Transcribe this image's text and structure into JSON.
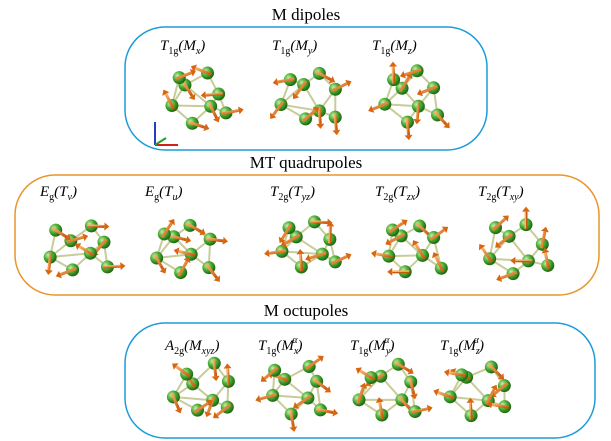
{
  "groups": [
    {
      "title": "M dipoles",
      "items": [
        {
          "head": "T",
          "head_sub": "1g",
          "arg_open": "(M",
          "arg_sub": "x",
          "arg_close": ")"
        },
        {
          "head": "T",
          "head_sub": "1g",
          "arg_open": "(M",
          "arg_sub": "y",
          "arg_close": ")"
        },
        {
          "head": "T",
          "head_sub": "1g",
          "arg_open": "(M",
          "arg_sub": "z",
          "arg_close": ")"
        }
      ]
    },
    {
      "title": "MT quadrupoles",
      "items": [
        {
          "head": "E",
          "head_sub": "g",
          "arg_open": "(T",
          "arg_sub": "v",
          "arg_close": ")"
        },
        {
          "head": "E",
          "head_sub": "g",
          "arg_open": "(T",
          "arg_sub": "u",
          "arg_close": ")"
        },
        {
          "head": "T",
          "head_sub": "2g",
          "arg_open": "(T",
          "arg_sub": "yz",
          "arg_close": ")"
        },
        {
          "head": "T",
          "head_sub": "2g",
          "arg_open": "(T",
          "arg_sub": "zx",
          "arg_close": ")"
        },
        {
          "head": "T",
          "head_sub": "2g",
          "arg_open": "(T",
          "arg_sub": "xy",
          "arg_close": ")"
        }
      ]
    },
    {
      "title": "M octupoles",
      "items": [
        {
          "head": "A",
          "head_sub": "2g",
          "arg_open": "(M",
          "arg_sub": "xyz",
          "arg_close": ")"
        },
        {
          "head": "T",
          "head_sub": "1g",
          "arg_open": "(M",
          "arg_sub": "x",
          "arg_sup": "α",
          "arg_close": ")"
        },
        {
          "head": "T",
          "head_sub": "1g",
          "arg_open": "(M",
          "arg_sub": "y",
          "arg_sup": "α",
          "arg_close": ")"
        },
        {
          "head": "T",
          "head_sub": "1g",
          "arg_open": "(M",
          "arg_sub": "z",
          "arg_sup": "α",
          "arg_close": ")"
        }
      ]
    }
  ]
}
